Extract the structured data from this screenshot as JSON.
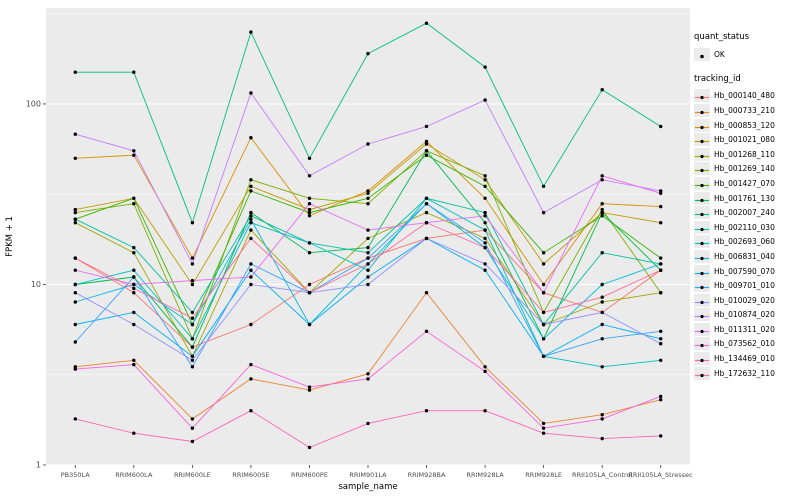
{
  "figure": {
    "background": "#FFFFFF",
    "panel_bg": "#EBEBEB",
    "grid_major": "#FFFFFF",
    "grid_minor": "#F7F7F7",
    "point_color": "#000000",
    "tick_text_color": "#4D4D4D"
  },
  "axes": {
    "x_label": "sample_name",
    "y_label": "FPKM + 1",
    "y_ticks": [
      1,
      10,
      100
    ]
  },
  "legend": {
    "quant_title": "quant_status",
    "quant_items": [
      "OK"
    ],
    "tracking_title": "tracking_id"
  },
  "chart_data": {
    "type": "line",
    "y_scale": "log10",
    "ylim": [
      1,
      340
    ],
    "grid": true,
    "legend_position": "right",
    "title": "",
    "xlabel": "sample_name",
    "ylabel": "FPKM + 1",
    "categories": [
      "PB350LA",
      "RRIM600LA",
      "RRIM600LE",
      "RRIM600SE",
      "RRIM600PE",
      "RRIM901LA",
      "RRIM928BA",
      "RRIM928LA",
      "RRIM928LE",
      "RRII105LA_Control",
      "RRII105LA_Stressed"
    ],
    "series": [
      {
        "name": "Hb_000140_480",
        "color": "#F8766D",
        "values": [
          14,
          9,
          4.5,
          6,
          10,
          14,
          18,
          20,
          9,
          7,
          12
        ]
      },
      {
        "name": "Hb_000733_210",
        "color": "#EA8331",
        "values": [
          3.5,
          3.8,
          1.8,
          3,
          2.6,
          3.2,
          9,
          3.5,
          1.7,
          1.9,
          2.3
        ]
      },
      {
        "name": "Hb_000853_120",
        "color": "#D89000",
        "values": [
          50,
          52,
          14,
          65,
          24,
          33,
          62,
          30,
          10,
          28,
          27
        ]
      },
      {
        "name": "Hb_001021_080",
        "color": "#C09B00",
        "values": [
          26,
          30,
          10,
          35,
          26,
          32,
          60,
          38,
          13,
          25,
          22
        ]
      },
      {
        "name": "Hb_001268_110",
        "color": "#A3A500",
        "values": [
          22,
          15,
          4,
          20,
          9,
          18,
          25,
          18,
          6,
          8,
          9
        ]
      },
      {
        "name": "Hb_001269_140",
        "color": "#7CAE00",
        "values": [
          25,
          28,
          5,
          38,
          30,
          28,
          55,
          40,
          7,
          26,
          9
        ]
      },
      {
        "name": "Hb_001427_070",
        "color": "#39B600",
        "values": [
          23,
          30,
          6,
          33,
          25,
          30,
          52,
          35,
          15,
          24,
          14
        ]
      },
      {
        "name": "Hb_001761_130",
        "color": "#00BB4E",
        "values": [
          10,
          11,
          4.5,
          25,
          15,
          16,
          55,
          22,
          5,
          25,
          12
        ]
      },
      {
        "name": "Hb_002007_240",
        "color": "#00BF7D",
        "values": [
          150,
          150,
          22,
          250,
          50,
          190,
          280,
          160,
          35,
          120,
          75
        ]
      },
      {
        "name": "Hb_002110_030",
        "color": "#00C1A3",
        "values": [
          23,
          16,
          7,
          24,
          17,
          15,
          30,
          25,
          6,
          15,
          13
        ]
      },
      {
        "name": "Hb_002693_060",
        "color": "#00BFC4",
        "values": [
          10,
          12,
          5,
          22,
          17,
          12,
          30,
          20,
          4,
          3.5,
          3.8
        ]
      },
      {
        "name": "Hb_006831_040",
        "color": "#00BAE0",
        "values": [
          8,
          10,
          6,
          23,
          6,
          13,
          28,
          16,
          5,
          10,
          13
        ]
      },
      {
        "name": "Hb_007590_070",
        "color": "#00B0F6",
        "values": [
          6,
          7,
          4,
          12,
          6,
          11,
          18,
          12,
          4,
          6,
          5
        ]
      },
      {
        "name": "Hb_009701_010",
        "color": "#35A2FF",
        "values": [
          4.8,
          11,
          3.5,
          13,
          9,
          14,
          28,
          17,
          4,
          5,
          5.5
        ]
      },
      {
        "name": "Hb_010029_020",
        "color": "#9590FF",
        "values": [
          9,
          6,
          3.8,
          10,
          9,
          10,
          18,
          13,
          6,
          7,
          4.7
        ]
      },
      {
        "name": "Hb_010874_020",
        "color": "#C77CFF",
        "values": [
          68,
          55,
          13,
          115,
          40,
          60,
          75,
          105,
          25,
          38,
          33
        ]
      },
      {
        "name": "Hb_011311_020",
        "color": "#E76BF3",
        "values": [
          12,
          10,
          10.5,
          11,
          28,
          20,
          22,
          24,
          9,
          40,
          32
        ]
      },
      {
        "name": "Hb_073562_010",
        "color": "#FA62DB",
        "values": [
          3.4,
          3.6,
          1.6,
          3.6,
          2.7,
          3.0,
          5.5,
          3.3,
          1.6,
          1.8,
          2.4
        ]
      },
      {
        "name": "Hb_134469_010",
        "color": "#FF62BC",
        "values": [
          1.8,
          1.5,
          1.35,
          2.0,
          1.25,
          1.7,
          2.0,
          2.0,
          1.5,
          1.4,
          1.45
        ]
      },
      {
        "name": "Hb_172632_110",
        "color": "#FF6A98",
        "values": [
          14,
          9.5,
          6.5,
          18,
          9,
          13,
          22,
          16,
          7,
          8.5,
          12
        ]
      }
    ]
  }
}
